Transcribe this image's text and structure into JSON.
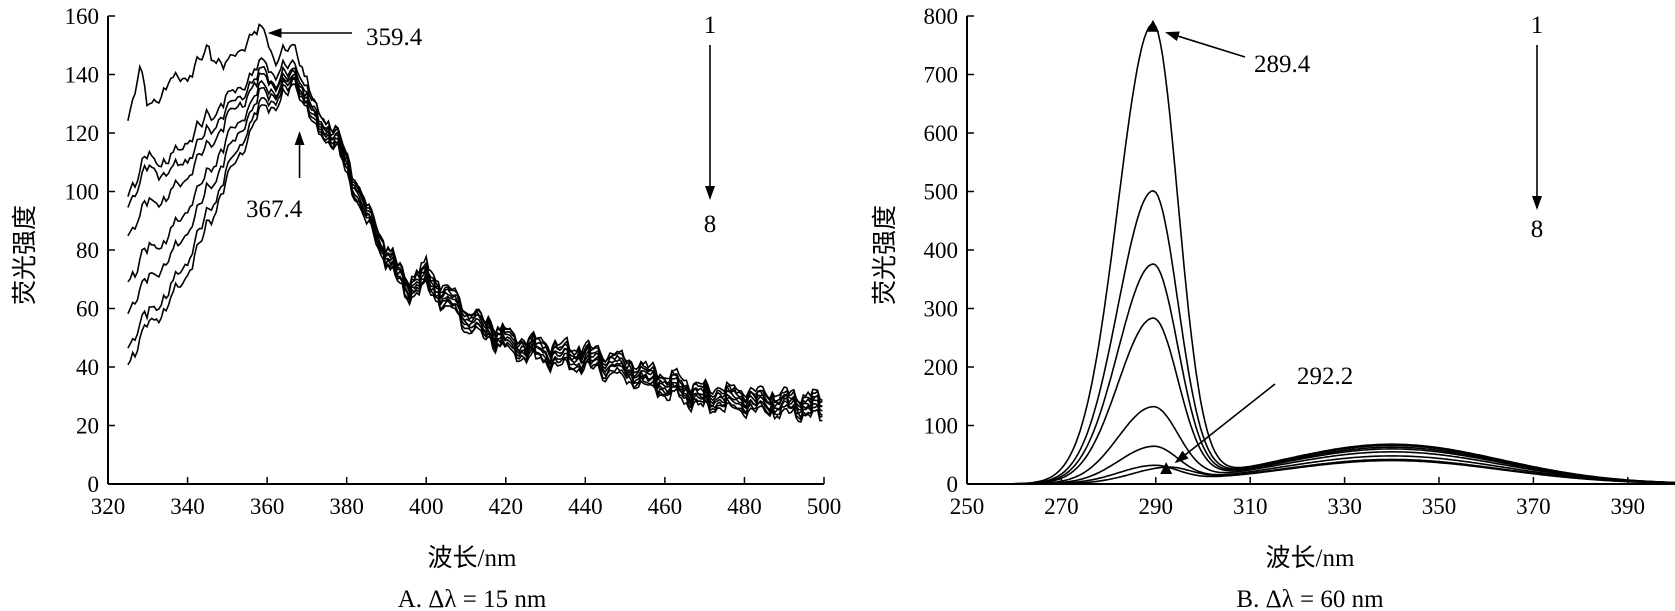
{
  "chart_data": [
    {
      "type": "line",
      "panel": "A",
      "caption": "A. Δλ = 15 nm",
      "xlabel": "波长/nm",
      "ylabel": "荧光强度",
      "xlim": [
        320,
        500
      ],
      "ylim": [
        0,
        160
      ],
      "xticks": [
        320,
        340,
        360,
        380,
        400,
        420,
        440,
        460,
        480,
        500
      ],
      "yticks": [
        0,
        20,
        40,
        60,
        80,
        100,
        120,
        140,
        160
      ],
      "series_count": 8,
      "series": [
        {
          "x": [
            325,
            328,
            330,
            335,
            340,
            345,
            350,
            355,
            359.4,
            362,
            367.4,
            372,
            377,
            380,
            385,
            390,
            395,
            400,
            410,
            420,
            430,
            440,
            450,
            460,
            470,
            480,
            490,
            500
          ],
          "values": [
            125,
            143,
            128,
            137,
            140,
            148,
            143,
            152,
            155,
            145,
            150,
            128,
            122,
            112,
            95,
            82,
            70,
            75,
            60,
            52,
            48,
            47,
            43,
            38,
            33,
            32,
            31,
            30
          ]
        },
        {
          "x": [
            325,
            330,
            335,
            340,
            345,
            350,
            355,
            359.4,
            362,
            367.4,
            372,
            377,
            380,
            385,
            390,
            395,
            400,
            410,
            420,
            430,
            440,
            450,
            460,
            470,
            480,
            490,
            500
          ],
          "values": [
            100,
            112,
            110,
            118,
            125,
            132,
            138,
            145,
            140,
            144,
            128,
            122,
            112,
            95,
            82,
            70,
            73,
            60,
            52,
            47,
            46,
            42,
            37,
            32,
            31,
            30,
            29
          ]
        },
        {
          "x": [
            325,
            330,
            335,
            340,
            345,
            350,
            355,
            359.4,
            362,
            367.4,
            372,
            377,
            380,
            385,
            390,
            395,
            400,
            410,
            420,
            430,
            440,
            450,
            460,
            470,
            480,
            490,
            500
          ],
          "values": [
            96,
            108,
            106,
            112,
            120,
            128,
            135,
            142,
            137,
            142,
            126,
            121,
            111,
            94,
            81,
            69,
            72,
            59,
            51,
            46,
            45,
            41,
            36,
            31,
            30,
            29,
            28
          ]
        },
        {
          "x": [
            325,
            330,
            335,
            340,
            345,
            350,
            355,
            359.4,
            362,
            367.4,
            372,
            377,
            380,
            385,
            390,
            395,
            400,
            410,
            420,
            430,
            440,
            450,
            460,
            470,
            480,
            490,
            500
          ],
          "values": [
            86,
            96,
            98,
            106,
            115,
            125,
            133,
            140,
            136,
            141,
            125,
            120,
            110,
            93,
            80,
            68,
            71,
            58,
            50,
            45,
            44,
            40,
            35,
            30,
            29,
            28,
            27
          ]
        },
        {
          "x": [
            325,
            330,
            335,
            340,
            345,
            350,
            355,
            359.4,
            362,
            367.4,
            372,
            377,
            380,
            385,
            390,
            395,
            400,
            410,
            420,
            430,
            440,
            450,
            460,
            470,
            480,
            490,
            500
          ],
          "values": [
            70,
            80,
            84,
            95,
            106,
            118,
            128,
            137,
            134,
            140,
            124,
            119,
            109,
            92,
            79,
            67,
            70,
            57,
            49,
            44,
            43,
            39,
            34,
            29,
            28,
            27,
            26
          ]
        },
        {
          "x": [
            325,
            330,
            335,
            340,
            345,
            350,
            355,
            359.4,
            362,
            367.4,
            372,
            377,
            380,
            385,
            390,
            395,
            400,
            410,
            420,
            430,
            440,
            450,
            460,
            470,
            480,
            490,
            500
          ],
          "values": [
            60,
            70,
            76,
            87,
            100,
            113,
            125,
            135,
            133,
            139,
            123,
            118,
            108,
            91,
            78,
            66,
            69,
            56,
            48,
            43,
            42,
            38,
            33,
            28,
            27,
            26,
            25
          ]
        },
        {
          "x": [
            325,
            330,
            335,
            340,
            345,
            350,
            355,
            359.4,
            362,
            367.4,
            372,
            377,
            380,
            385,
            390,
            395,
            400,
            410,
            420,
            430,
            440,
            450,
            460,
            470,
            480,
            490,
            500
          ],
          "values": [
            48,
            58,
            65,
            77,
            92,
            107,
            121,
            132,
            131,
            138,
            122,
            117,
            107,
            90,
            77,
            65,
            68,
            55,
            47,
            42,
            41,
            37,
            32,
            27,
            26,
            25,
            24
          ]
        },
        {
          "x": [
            325,
            330,
            335,
            340,
            345,
            350,
            355,
            359.4,
            362,
            367.4,
            372,
            377,
            380,
            385,
            390,
            395,
            400,
            410,
            420,
            430,
            440,
            450,
            460,
            470,
            480,
            490,
            500
          ],
          "values": [
            42,
            54,
            61,
            73,
            88,
            104,
            118,
            130,
            129,
            137,
            121,
            116,
            106,
            89,
            76,
            64,
            67,
            54,
            46,
            41,
            40,
            36,
            31,
            26,
            25,
            24,
            23
          ]
        }
      ],
      "annotations": [
        {
          "text": "359.4",
          "target_x": 359.4,
          "target_y": 155
        },
        {
          "text": "367.4",
          "target_x": 367.4,
          "target_y": 122
        },
        {
          "text": "1",
          "role": "order-start"
        },
        {
          "text": "8",
          "role": "order-end"
        }
      ]
    },
    {
      "type": "line",
      "panel": "B",
      "caption": "B. Δλ = 60 nm",
      "xlabel": "波长/nm",
      "ylabel": "荧光强度",
      "xlim": [
        250,
        400
      ],
      "ylim": [
        0,
        800
      ],
      "xticks": [
        250,
        270,
        290,
        310,
        330,
        350,
        370,
        390
      ],
      "yticks": [
        0,
        100,
        200,
        300,
        400,
        500,
        600,
        700,
        800
      ],
      "series_count": 8,
      "peak_x": 289.4,
      "peaks": [
        780,
        495,
        370,
        278,
        127,
        60,
        28,
        24
      ],
      "broad_peaks": [
        68,
        66,
        63,
        60,
        55,
        48,
        42,
        40
      ],
      "markers": [
        {
          "x": 289.4,
          "y": 780
        },
        {
          "x": 292.2,
          "y": 24
        }
      ],
      "annotations": [
        {
          "text": "289.4",
          "target_x": 289.4,
          "target_y": 780
        },
        {
          "text": "292.2",
          "target_x": 292.2,
          "target_y": 24
        },
        {
          "text": "1",
          "role": "order-start"
        },
        {
          "text": "8",
          "role": "order-end"
        }
      ]
    }
  ]
}
